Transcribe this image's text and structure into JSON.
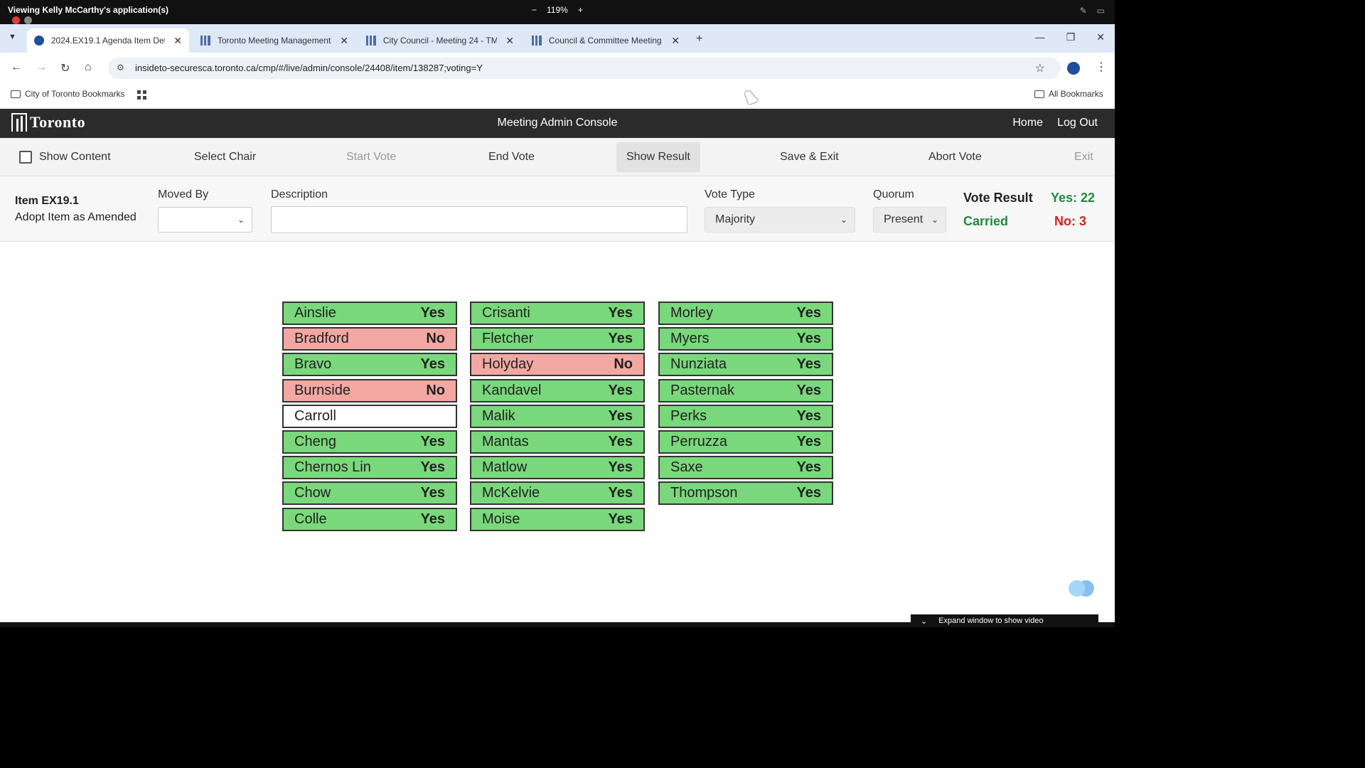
{
  "share": {
    "title": "Viewing Kelly McCarthy's application(s)",
    "zoom_minus": "−",
    "zoom": "119%",
    "zoom_plus": "+"
  },
  "browser": {
    "tabs": [
      {
        "label": "2024.EX19.1 Agenda Item Deta",
        "active": true
      },
      {
        "label": "Toronto Meeting Management",
        "active": false
      },
      {
        "label": "City Council - Meeting 24 - TM",
        "active": false
      },
      {
        "label": "Council & Committee Meeting",
        "active": false
      }
    ],
    "url": "insideto-securesca.toronto.ca/cmp/#/live/admin/console/24408/item/138287;voting=Y",
    "bookmarks": {
      "folder": "City of Toronto Bookmarks",
      "all": "All Bookmarks"
    }
  },
  "app": {
    "logo": "Toronto",
    "title": "Meeting Admin Console",
    "links": {
      "home": "Home",
      "logout": "Log Out"
    }
  },
  "toolbar": {
    "show_content": "Show Content",
    "select_chair": "Select Chair",
    "start_vote": "Start Vote",
    "end_vote": "End Vote",
    "show_result": "Show Result",
    "save_exit": "Save & Exit",
    "abort_vote": "Abort Vote",
    "exit": "Exit"
  },
  "item": {
    "id": "Item EX19.1",
    "motion": "Adopt Item as Amended",
    "moved_by_label": "Moved By",
    "moved_by_value": "",
    "description_label": "Description",
    "description_value": "",
    "vote_type_label": "Vote Type",
    "vote_type_value": "Majority",
    "quorum_label": "Quorum",
    "quorum_value": "Present"
  },
  "result": {
    "label": "Vote Result",
    "status": "Carried",
    "yes": "Yes: 22",
    "no": "No: 3"
  },
  "votes": {
    "col1": [
      {
        "name": "Ainslie",
        "vote": "Yes"
      },
      {
        "name": "Bradford",
        "vote": "No"
      },
      {
        "name": "Bravo",
        "vote": "Yes"
      },
      {
        "name": "Burnside",
        "vote": "No"
      },
      {
        "name": "Carroll",
        "vote": ""
      },
      {
        "name": "Cheng",
        "vote": "Yes"
      },
      {
        "name": "Chernos Lin",
        "vote": "Yes"
      },
      {
        "name": "Chow",
        "vote": "Yes"
      },
      {
        "name": "Colle",
        "vote": "Yes"
      }
    ],
    "col2": [
      {
        "name": "Crisanti",
        "vote": "Yes"
      },
      {
        "name": "Fletcher",
        "vote": "Yes"
      },
      {
        "name": "Holyday",
        "vote": "No"
      },
      {
        "name": "Kandavel",
        "vote": "Yes"
      },
      {
        "name": "Malik",
        "vote": "Yes"
      },
      {
        "name": "Mantas",
        "vote": "Yes"
      },
      {
        "name": "Matlow",
        "vote": "Yes"
      },
      {
        "name": "McKelvie",
        "vote": "Yes"
      },
      {
        "name": "Moise",
        "vote": "Yes"
      }
    ],
    "col3": [
      {
        "name": "Morley",
        "vote": "Yes"
      },
      {
        "name": "Myers",
        "vote": "Yes"
      },
      {
        "name": "Nunziata",
        "vote": "Yes"
      },
      {
        "name": "Pasternak",
        "vote": "Yes"
      },
      {
        "name": "Perks",
        "vote": "Yes"
      },
      {
        "name": "Perruzza",
        "vote": "Yes"
      },
      {
        "name": "Saxe",
        "vote": "Yes"
      },
      {
        "name": "Thompson",
        "vote": "Yes"
      }
    ]
  },
  "footer": {
    "expand_tip": "Expand window to show video"
  },
  "colors": {
    "yes": "#79d87b",
    "no": "#f2a7a3",
    "carried": "#1e8a3c",
    "no_count": "#d62020"
  }
}
